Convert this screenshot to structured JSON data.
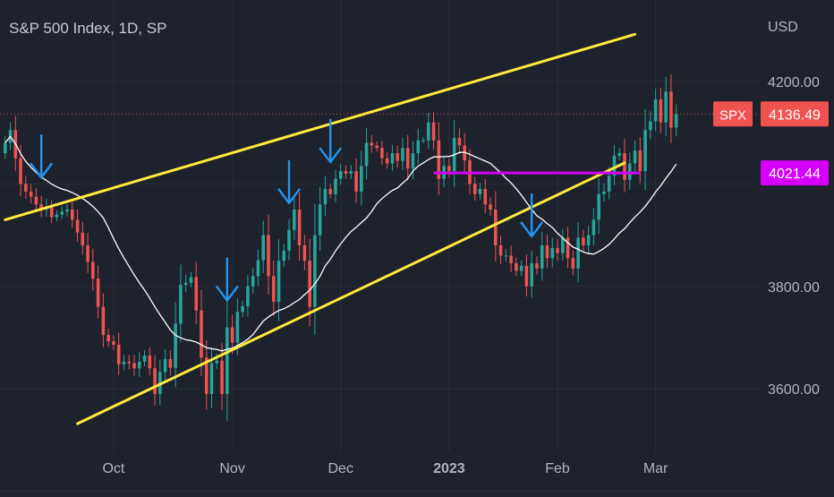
{
  "colors": {
    "background": "#1e222d",
    "grid": "#2a2e39",
    "axis_text": "#b2b5be",
    "candle_up": "#26a69a",
    "candle_down": "#ef5350",
    "moving_average": "#ffffff",
    "channel": "#ffeb3b",
    "support": "#d500f9",
    "arrow": "#2196f3",
    "last_price_label": "#ef5350"
  },
  "chart_data": {
    "type": "candlestick",
    "title": "S&P 500 Index, 1D, SP",
    "currency_label": "USD",
    "ylim": [
      3450,
      4310
    ],
    "y_ticks": [
      {
        "value": 3600,
        "label": "3600.00"
      },
      {
        "value": 3800,
        "label": "3800.00"
      },
      {
        "value": 4200,
        "label": "4200.00"
      }
    ],
    "x_ticks": [
      {
        "index": 21,
        "label": "Oct",
        "bold": false
      },
      {
        "index": 44,
        "label": "Nov",
        "bold": false
      },
      {
        "index": 65,
        "label": "Dec",
        "bold": false
      },
      {
        "index": 86,
        "label": "2023",
        "bold": true
      },
      {
        "index": 107,
        "label": "Feb",
        "bold": false
      },
      {
        "index": 126,
        "label": "Mar",
        "bold": false
      }
    ],
    "x_range": [
      -1,
      146
    ],
    "closes": [
      4080,
      4105,
      4050,
      4000,
      3985,
      3975,
      3960,
      3950,
      3955,
      3935,
      3940,
      3946,
      3950,
      3930,
      3905,
      3880,
      3848,
      3815,
      3760,
      3705,
      3693,
      3686,
      3648,
      3653,
      3650,
      3640,
      3653,
      3665,
      3640,
      3590,
      3633,
      3658,
      3641,
      3727,
      3803,
      3807,
      3818,
      3753,
      3661,
      3590,
      3650,
      3655,
      3590,
      3720,
      3690,
      3750,
      3761,
      3800,
      3820,
      3851,
      3900,
      3820,
      3770,
      3850,
      3870,
      3910,
      3950,
      3880,
      3850,
      3760,
      3900,
      3960,
      3990,
      3980,
      4010,
      4025,
      4020,
      4025,
      3985,
      4035,
      4080,
      4075,
      4070,
      4050,
      4040,
      4060,
      4045,
      4070,
      4030,
      4060,
      4085,
      4085,
      4120,
      4085,
      4010,
      4035,
      4025,
      4090,
      4075,
      4046,
      4000,
      3980,
      3990,
      3960,
      3950,
      3880,
      3860,
      3860,
      3845,
      3830,
      3840,
      3800,
      3845,
      3835,
      3880,
      3855,
      3875,
      3865,
      3895,
      3855,
      3835,
      3895,
      3880,
      3900,
      3930,
      3980,
      3985,
      4016,
      4055,
      4060,
      4008,
      4040,
      4065,
      4025,
      4105,
      4122,
      4165,
      4120,
      4180,
      4110,
      4136
    ],
    "ma_period": 20,
    "annotations": [
      {
        "type": "trendline",
        "name": "channel-upper",
        "points": [
          [
            0,
            3930
          ],
          [
            122,
            4292
          ]
        ]
      },
      {
        "type": "trendline",
        "name": "channel-lower",
        "points": [
          [
            14,
            3532
          ],
          [
            120,
            4041
          ]
        ]
      },
      {
        "type": "hline",
        "name": "support-line",
        "value": 4021.44,
        "from": 83,
        "to": 123
      },
      {
        "type": "arrow",
        "index": 7
      },
      {
        "type": "arrow",
        "index": 43
      },
      {
        "type": "arrow",
        "index": 55
      },
      {
        "type": "arrow",
        "index": 63
      },
      {
        "type": "arrow",
        "index": 102
      }
    ],
    "price_labels": [
      {
        "name": "last-price-label",
        "symbol": "SPX",
        "value": 4136.49,
        "text": "4136.49",
        "style": "last"
      },
      {
        "name": "support-price-label",
        "value": 4021.44,
        "text": "4021.44",
        "style": "support"
      }
    ],
    "grid": true
  }
}
